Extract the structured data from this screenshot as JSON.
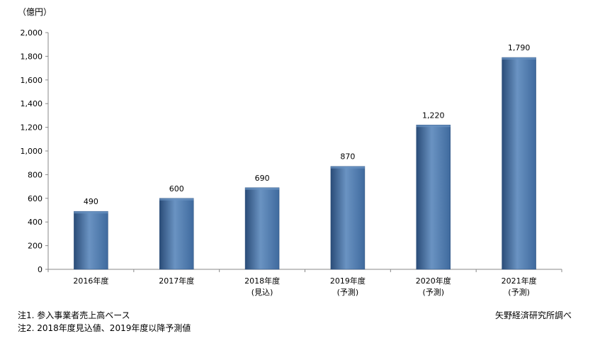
{
  "chart_data": {
    "type": "bar",
    "unit_label": "（億円）",
    "categories": [
      [
        "2016年度"
      ],
      [
        "2017年度"
      ],
      [
        "2018年度",
        "(見込)"
      ],
      [
        "2019年度",
        "(予測)"
      ],
      [
        "2020年度",
        "(予測)"
      ],
      [
        "2021年度",
        "(予測)"
      ]
    ],
    "values": [
      490,
      600,
      690,
      870,
      1220,
      1790
    ],
    "value_labels": [
      "490",
      "600",
      "690",
      "870",
      "1,220",
      "1,790"
    ],
    "ylim": [
      0,
      2000
    ],
    "yticks": [
      0,
      200,
      400,
      600,
      800,
      1000,
      1200,
      1400,
      1600,
      1800,
      2000
    ],
    "ytick_labels": [
      "0",
      "200",
      "400",
      "600",
      "800",
      "1,000",
      "1,200",
      "1,400",
      "1,600",
      "1,800",
      "2,000"
    ],
    "grid": false,
    "bar_color": "#3F6A9E",
    "bar_highlight": "#6A93C2",
    "bar_shadow": "#2A4C78"
  },
  "notes": {
    "note1": "注1. 参入事業者売上高ベース",
    "note2": "注2. 2018年度見込値、2019年度以降予測値"
  },
  "source": "矢野経済研究所調べ"
}
